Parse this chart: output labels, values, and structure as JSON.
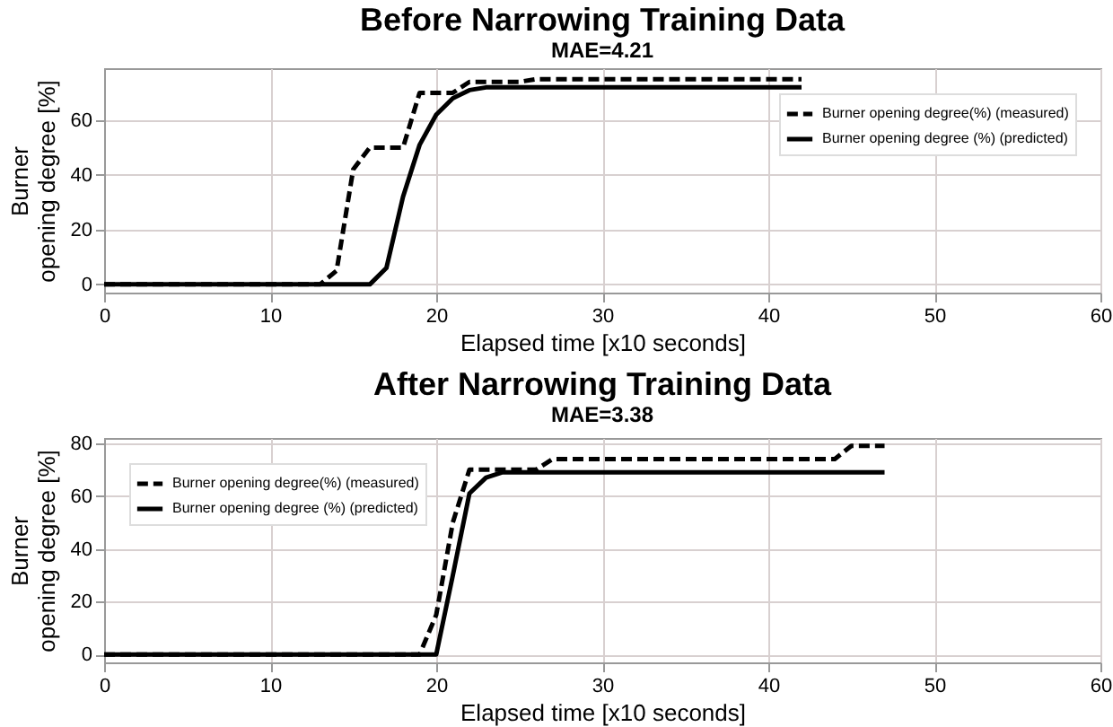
{
  "chart_data": [
    {
      "type": "line",
      "title": "Before Narrowing Training Data",
      "subtitle": "MAE=4.21",
      "xlabel": "Elapsed time [x10 seconds]",
      "ylabel": "Burner\nopening degree [%]",
      "xlim": [
        0,
        60
      ],
      "xticks": [
        0,
        10,
        20,
        30,
        40,
        50,
        60
      ],
      "ylim": [
        -3,
        79
      ],
      "yticks": [
        0,
        20,
        40,
        60
      ],
      "grid": true,
      "legend": "top right",
      "series": [
        {
          "name": "Burner opening degree(%) (measured)",
          "color": "#000000",
          "line_style": "dashed",
          "x": [
            0,
            13,
            14,
            15,
            16,
            18,
            19,
            21,
            22,
            25,
            26,
            42
          ],
          "values": [
            0,
            0,
            5,
            42,
            50,
            50,
            70,
            70,
            74,
            74,
            75,
            75
          ]
        },
        {
          "name": "Burner opening degree (%) (predicted)",
          "color": "#000000",
          "line_style": "solid",
          "x": [
            0,
            16,
            17,
            18,
            19,
            20,
            21,
            22,
            23,
            42
          ],
          "values": [
            0,
            0,
            6,
            32,
            51,
            62,
            68,
            71,
            72,
            72
          ]
        }
      ]
    },
    {
      "type": "line",
      "title": "After Narrowing Training Data",
      "subtitle": "MAE=3.38",
      "xlabel": "Elapsed time [x10 seconds]",
      "ylabel": "Burner\nopening degree [%]",
      "xlim": [
        0,
        60
      ],
      "xticks": [
        0,
        10,
        20,
        30,
        40,
        50,
        60
      ],
      "ylim": [
        -3,
        82
      ],
      "yticks": [
        0,
        20,
        40,
        60,
        80
      ],
      "grid": true,
      "legend": "top left",
      "series": [
        {
          "name": "Burner opening degree(%) (measured)",
          "color": "#000000",
          "line_style": "dashed",
          "x": [
            0,
            19,
            20,
            21,
            22,
            26,
            27,
            44,
            45,
            47
          ],
          "values": [
            0,
            0,
            15,
            50,
            70,
            70,
            74,
            74,
            79,
            79
          ]
        },
        {
          "name": "Burner opening degree (%) (predicted)",
          "color": "#000000",
          "line_style": "solid",
          "x": [
            0,
            20,
            21,
            22,
            23,
            24,
            47
          ],
          "values": [
            0,
            0,
            30,
            61,
            67,
            69,
            69
          ]
        }
      ]
    }
  ]
}
